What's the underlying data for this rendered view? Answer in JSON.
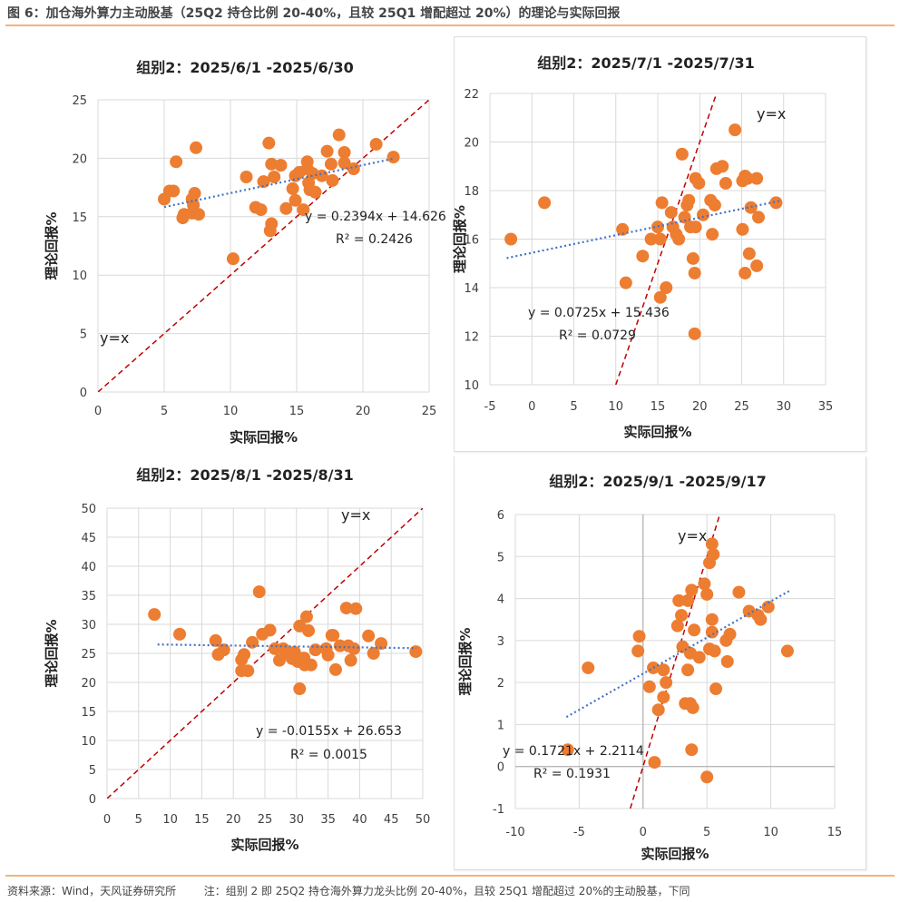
{
  "figure_title": "图 6：加仓海外算力主动股基（25Q2 持仓比例 20-40%，且较 25Q1 增配超过 20%）的理论与实际回报",
  "source": "资料来源：Wind，天风证券研究所",
  "note": "注：组别 2 即 25Q2 持仓海外算力龙头比例 20-40%，且较 25Q1 增配超过 20%的主动股基，下同",
  "colors": {
    "points": "#ED7D31",
    "trend": "#4472C4",
    "identity": "#C00000",
    "accent": "#F4B27A"
  },
  "chart_data": [
    {
      "type": "scatter",
      "title": "组别2：2025/6/1 -2025/6/30",
      "xlabel": "实际回报%",
      "ylabel": "理论回报%",
      "xlim": [
        0,
        25
      ],
      "ylim": [
        0,
        25
      ],
      "xticks": [
        "0",
        "5",
        "10",
        "15",
        "20",
        "25"
      ],
      "yticks": [
        "0",
        "5",
        "10",
        "15",
        "20",
        "25"
      ],
      "grid": true,
      "identity_label": "y=x",
      "equation": "y = 0.2394x + 14.626",
      "r2_label": "R² = 0.2426",
      "trend": {
        "slope": 0.2394,
        "intercept": 14.626,
        "xrange": [
          5,
          22.3
        ]
      },
      "points": [
        [
          5.0,
          16.5
        ],
        [
          5.4,
          17.2
        ],
        [
          5.7,
          17.2
        ],
        [
          5.9,
          19.7
        ],
        [
          7.4,
          20.9
        ],
        [
          6.4,
          14.9
        ],
        [
          6.5,
          15.2
        ],
        [
          7.1,
          16.5
        ],
        [
          7.3,
          17.0
        ],
        [
          7.2,
          16.0
        ],
        [
          7.1,
          15.3
        ],
        [
          7.6,
          15.2
        ],
        [
          10.2,
          11.4
        ],
        [
          11.2,
          18.4
        ],
        [
          11.9,
          15.8
        ],
        [
          12.3,
          15.6
        ],
        [
          12.9,
          21.3
        ],
        [
          12.5,
          18.0
        ],
        [
          13.1,
          19.5
        ],
        [
          13.3,
          18.4
        ],
        [
          13.1,
          14.4
        ],
        [
          13.0,
          13.8
        ],
        [
          13.8,
          19.4
        ],
        [
          14.2,
          15.7
        ],
        [
          14.7,
          17.4
        ],
        [
          14.9,
          18.5
        ],
        [
          14.9,
          16.4
        ],
        [
          15.2,
          18.8
        ],
        [
          15.5,
          15.6
        ],
        [
          15.8,
          19.7
        ],
        [
          15.8,
          19.1
        ],
        [
          15.9,
          17.9
        ],
        [
          16.2,
          18.7
        ],
        [
          16.4,
          17.1
        ],
        [
          16.0,
          17.3
        ],
        [
          17.3,
          20.6
        ],
        [
          17.6,
          19.5
        ],
        [
          17.7,
          18.1
        ],
        [
          18.2,
          22.0
        ],
        [
          18.6,
          20.5
        ],
        [
          18.6,
          19.6
        ],
        [
          19.3,
          19.1
        ],
        [
          21.0,
          21.2
        ],
        [
          22.3,
          20.1
        ],
        [
          16.9,
          18.5
        ]
      ]
    },
    {
      "type": "scatter",
      "title": "组别2：2025/7/1 -2025/7/31",
      "xlabel": "实际回报%",
      "ylabel": "理论回报%",
      "xlim": [
        -5,
        35
      ],
      "ylim": [
        10,
        22
      ],
      "xticks": [
        "-5",
        "0",
        "5",
        "10",
        "15",
        "20",
        "25",
        "30",
        "35"
      ],
      "yticks": [
        "10",
        "12",
        "14",
        "16",
        "18",
        "20",
        "22"
      ],
      "grid": true,
      "identity_label": "y=x",
      "equation": "y = 0.0725x + 15.436",
      "r2_label": "R² = 0.0729",
      "trend": {
        "slope": 0.0725,
        "intercept": 15.436,
        "xrange": [
          -3,
          29.5
        ]
      },
      "points": [
        [
          1.5,
          17.5
        ],
        [
          10.8,
          16.4
        ],
        [
          11.2,
          14.2
        ],
        [
          13.2,
          15.3
        ],
        [
          14.2,
          16.0
        ],
        [
          15.0,
          16.5
        ],
        [
          15.3,
          16.0
        ],
        [
          15.5,
          17.5
        ],
        [
          16.0,
          14.0
        ],
        [
          15.3,
          13.6
        ],
        [
          16.6,
          17.1
        ],
        [
          16.8,
          16.5
        ],
        [
          17.2,
          16.2
        ],
        [
          17.5,
          16.0
        ],
        [
          17.9,
          19.5
        ],
        [
          18.2,
          16.9
        ],
        [
          18.5,
          17.4
        ],
        [
          18.7,
          17.6
        ],
        [
          18.9,
          16.5
        ],
        [
          19.2,
          15.2
        ],
        [
          19.4,
          14.6
        ],
        [
          19.4,
          12.1
        ],
        [
          19.5,
          18.5
        ],
        [
          19.9,
          18.3
        ],
        [
          19.5,
          16.5
        ],
        [
          20.4,
          17.0
        ],
        [
          21.3,
          17.6
        ],
        [
          21.5,
          16.2
        ],
        [
          21.8,
          17.4
        ],
        [
          22.0,
          18.9
        ],
        [
          22.7,
          19.0
        ],
        [
          23.1,
          18.3
        ],
        [
          24.2,
          20.5
        ],
        [
          25.1,
          18.4
        ],
        [
          25.4,
          18.6
        ],
        [
          25.7,
          18.5
        ],
        [
          25.4,
          14.6
        ],
        [
          25.9,
          15.4
        ],
        [
          26.1,
          17.3
        ],
        [
          26.8,
          18.5
        ],
        [
          26.8,
          14.9
        ],
        [
          27.0,
          16.9
        ],
        [
          29.1,
          17.5
        ],
        [
          25.1,
          16.4
        ],
        [
          -2.5,
          16.0
        ]
      ]
    },
    {
      "type": "scatter",
      "title": "组别2：2025/8/1 -2025/8/31",
      "xlabel": "实际回报%",
      "ylabel": "理论回报%",
      "xlim": [
        0,
        50
      ],
      "ylim": [
        0,
        50
      ],
      "xticks": [
        "0",
        "5",
        "10",
        "15",
        "20",
        "25",
        "30",
        "35",
        "40",
        "45",
        "50"
      ],
      "yticks": [
        "0",
        "5",
        "10",
        "15",
        "20",
        "25",
        "30",
        "35",
        "40",
        "45",
        "50"
      ],
      "grid": true,
      "identity_label": "y=x",
      "equation": "y = -0.0155x + 26.653",
      "r2_label": "R² = 0.0015",
      "trend": {
        "slope": -0.0155,
        "intercept": 26.653,
        "xrange": [
          8,
          49
        ]
      },
      "points": [
        [
          7.5,
          31.7
        ],
        [
          11.5,
          28.3
        ],
        [
          17.2,
          27.2
        ],
        [
          17.6,
          24.8
        ],
        [
          18.5,
          25.6
        ],
        [
          21.3,
          23.9
        ],
        [
          21.7,
          24.8
        ],
        [
          21.3,
          22.0
        ],
        [
          22.3,
          22.0
        ],
        [
          23.0,
          26.9
        ],
        [
          24.1,
          35.6
        ],
        [
          24.6,
          28.3
        ],
        [
          25.8,
          29.0
        ],
        [
          26.6,
          25.8
        ],
        [
          27.3,
          23.8
        ],
        [
          27.9,
          25.8
        ],
        [
          28.7,
          25.0
        ],
        [
          29.3,
          24.1
        ],
        [
          29.7,
          25.2
        ],
        [
          30.2,
          23.6
        ],
        [
          30.5,
          18.9
        ],
        [
          30.5,
          29.7
        ],
        [
          31.2,
          24.2
        ],
        [
          31.3,
          23.0
        ],
        [
          31.6,
          31.3
        ],
        [
          31.9,
          28.9
        ],
        [
          32.3,
          23.0
        ],
        [
          33.0,
          25.6
        ],
        [
          34.7,
          25.8
        ],
        [
          35.0,
          24.7
        ],
        [
          35.6,
          28.1
        ],
        [
          36.2,
          22.2
        ],
        [
          36.9,
          26.3
        ],
        [
          37.9,
          32.8
        ],
        [
          38.2,
          26.3
        ],
        [
          38.6,
          23.8
        ],
        [
          39.1,
          25.8
        ],
        [
          39.4,
          32.7
        ],
        [
          41.4,
          28.0
        ],
        [
          42.2,
          25.0
        ],
        [
          43.4,
          26.7
        ],
        [
          48.9,
          25.3
        ],
        [
          35.8,
          28.1
        ]
      ]
    },
    {
      "type": "scatter",
      "title": "组别2：2025/9/1 -2025/9/17",
      "xlabel": "实际回报%",
      "ylabel": "理论回报%",
      "xlim": [
        -10,
        15
      ],
      "ylim": [
        -1,
        6
      ],
      "xticks": [
        "-10",
        "-5",
        "0",
        "5",
        "10",
        "15"
      ],
      "yticks": [
        "-1",
        "0",
        "1",
        "2",
        "3",
        "4",
        "5",
        "6"
      ],
      "grid": true,
      "identity_label": "y=x",
      "equation": "y = 0.1721x + 2.2114",
      "r2_label": "R² = 0.1931",
      "trend": {
        "slope": 0.1721,
        "intercept": 2.2114,
        "xrange": [
          -6,
          11.5
        ]
      },
      "points": [
        [
          -5.9,
          0.4
        ],
        [
          -4.3,
          2.35
        ],
        [
          -0.4,
          2.75
        ],
        [
          -0.3,
          3.1
        ],
        [
          0.5,
          1.9
        ],
        [
          0.8,
          2.35
        ],
        [
          0.9,
          0.1
        ],
        [
          1.2,
          1.35
        ],
        [
          1.6,
          1.65
        ],
        [
          1.6,
          2.3
        ],
        [
          1.8,
          2.0
        ],
        [
          2.7,
          3.35
        ],
        [
          2.8,
          3.95
        ],
        [
          3.0,
          3.6
        ],
        [
          3.1,
          2.85
        ],
        [
          3.3,
          1.5
        ],
        [
          3.5,
          2.3
        ],
        [
          3.7,
          2.7
        ],
        [
          3.5,
          3.95
        ],
        [
          3.7,
          1.5
        ],
        [
          3.8,
          4.2
        ],
        [
          3.8,
          0.4
        ],
        [
          3.9,
          1.4
        ],
        [
          4.0,
          3.25
        ],
        [
          4.4,
          2.6
        ],
        [
          4.8,
          4.35
        ],
        [
          5.0,
          -0.25
        ],
        [
          5.0,
          4.1
        ],
        [
          5.2,
          4.85
        ],
        [
          5.2,
          2.8
        ],
        [
          5.4,
          3.5
        ],
        [
          5.4,
          3.2
        ],
        [
          5.4,
          5.3
        ],
        [
          5.5,
          5.05
        ],
        [
          5.6,
          2.75
        ],
        [
          5.7,
          1.85
        ],
        [
          6.5,
          3.0
        ],
        [
          6.6,
          2.5
        ],
        [
          6.8,
          3.15
        ],
        [
          7.5,
          4.15
        ],
        [
          8.3,
          3.7
        ],
        [
          9.0,
          3.6
        ],
        [
          9.2,
          3.5
        ],
        [
          9.8,
          3.8
        ],
        [
          11.3,
          2.75
        ]
      ]
    }
  ]
}
